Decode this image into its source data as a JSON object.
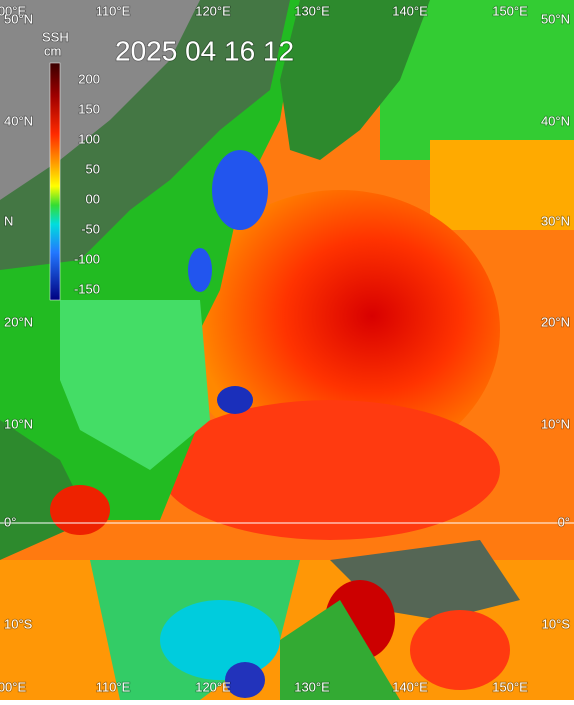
{
  "header": {
    "title": "2025 04 16 12"
  },
  "colorbar": {
    "title": "SSH",
    "unit": "cm",
    "labels": [
      "200",
      "150",
      "100",
      "50",
      "00",
      "-50",
      "-100",
      "-150"
    ]
  },
  "axes": {
    "top": [
      "00°E",
      "110°E",
      "120°E",
      "130°E",
      "140°E",
      "150°E"
    ],
    "bottom": [
      "00°E",
      "110°E",
      "120°E",
      "130°E",
      "140°E",
      "150°E"
    ],
    "left": [
      "50°N",
      "40°N",
      "N",
      "20°N",
      "10°N",
      "0°",
      "10°S"
    ],
    "right": [
      "50°N",
      "40°N",
      "30°N",
      "20°N",
      "10°N",
      "0°",
      "10°S"
    ]
  }
}
